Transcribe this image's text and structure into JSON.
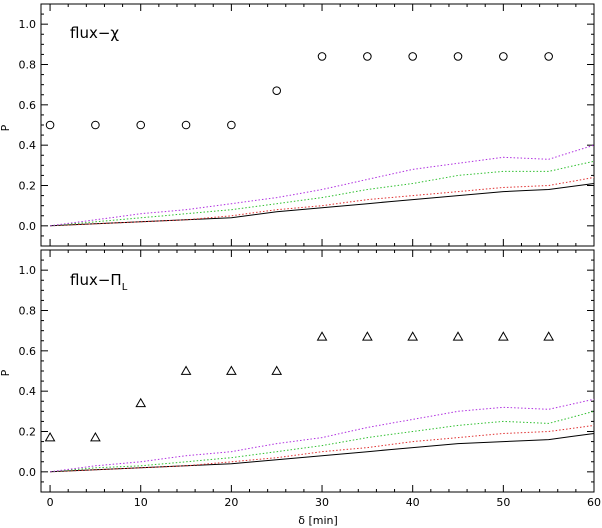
{
  "chart_data": [
    {
      "type": "scatter",
      "title": "flux−χ",
      "ylabel": "P",
      "xlabel": "",
      "xlim": [
        -1,
        60
      ],
      "ylim": [
        -0.1,
        1.1
      ],
      "grid": false,
      "x_ticks": [
        0,
        10,
        20,
        30,
        40,
        50,
        60
      ],
      "y_ticks": [
        0.0,
        0.2,
        0.4,
        0.6,
        0.8,
        1.0
      ],
      "y_tick_labels": [
        "0.0",
        "0.2",
        "0.4",
        "0.6",
        "0.8",
        "1.0"
      ],
      "points": {
        "marker": "circle",
        "x": [
          0,
          5,
          10,
          15,
          20,
          25,
          30,
          35,
          40,
          45,
          50,
          55
        ],
        "y": [
          0.5,
          0.5,
          0.5,
          0.5,
          0.5,
          0.67,
          0.84,
          0.84,
          0.84,
          0.84,
          0.84,
          0.84
        ]
      },
      "curves": [
        {
          "color": "#000000",
          "style": "solid",
          "x": [
            0,
            5,
            10,
            15,
            20,
            25,
            30,
            35,
            40,
            45,
            50,
            55,
            60
          ],
          "y": [
            0.0,
            0.01,
            0.02,
            0.03,
            0.04,
            0.07,
            0.09,
            0.11,
            0.13,
            0.15,
            0.17,
            0.18,
            0.21
          ]
        },
        {
          "color": "#e03030",
          "style": "dotted",
          "x": [
            0,
            5,
            10,
            15,
            20,
            25,
            30,
            35,
            40,
            45,
            50,
            55,
            60
          ],
          "y": [
            0.0,
            0.01,
            0.02,
            0.03,
            0.05,
            0.08,
            0.1,
            0.13,
            0.15,
            0.17,
            0.19,
            0.2,
            0.24
          ]
        },
        {
          "color": "#30c030",
          "style": "dotted",
          "x": [
            0,
            5,
            10,
            15,
            20,
            25,
            30,
            35,
            40,
            45,
            50,
            55,
            60
          ],
          "y": [
            0.0,
            0.02,
            0.04,
            0.06,
            0.08,
            0.11,
            0.14,
            0.18,
            0.21,
            0.25,
            0.27,
            0.27,
            0.32
          ]
        },
        {
          "color": "#b030e0",
          "style": "dotted",
          "x": [
            0,
            5,
            10,
            15,
            20,
            25,
            30,
            35,
            40,
            45,
            50,
            55,
            60
          ],
          "y": [
            0.0,
            0.03,
            0.06,
            0.08,
            0.11,
            0.14,
            0.18,
            0.23,
            0.28,
            0.31,
            0.34,
            0.33,
            0.4
          ]
        }
      ]
    },
    {
      "type": "scatter",
      "title_main": "flux−Π",
      "title_sub": "L",
      "ylabel": "P",
      "xlabel": "δ [min]",
      "xlim": [
        -1,
        60
      ],
      "ylim": [
        -0.1,
        1.1
      ],
      "grid": false,
      "x_ticks": [
        0,
        10,
        20,
        30,
        40,
        50,
        60
      ],
      "x_tick_labels": [
        "0",
        "10",
        "20",
        "30",
        "40",
        "50",
        "60"
      ],
      "y_ticks": [
        0.0,
        0.2,
        0.4,
        0.6,
        0.8,
        1.0
      ],
      "y_tick_labels": [
        "0.0",
        "0.2",
        "0.4",
        "0.6",
        "0.8",
        "1.0"
      ],
      "points": {
        "marker": "triangle",
        "x": [
          0,
          5,
          10,
          15,
          20,
          25,
          30,
          35,
          40,
          45,
          50,
          55
        ],
        "y": [
          0.17,
          0.17,
          0.34,
          0.5,
          0.5,
          0.5,
          0.67,
          0.67,
          0.67,
          0.67,
          0.67,
          0.67
        ]
      },
      "curves": [
        {
          "color": "#000000",
          "style": "solid",
          "x": [
            0,
            5,
            10,
            15,
            20,
            25,
            30,
            35,
            40,
            45,
            50,
            55,
            60
          ],
          "y": [
            0.0,
            0.01,
            0.02,
            0.03,
            0.04,
            0.06,
            0.08,
            0.1,
            0.12,
            0.14,
            0.15,
            0.16,
            0.19
          ]
        },
        {
          "color": "#e03030",
          "style": "dotted",
          "x": [
            0,
            5,
            10,
            15,
            20,
            25,
            30,
            35,
            40,
            45,
            50,
            55,
            60
          ],
          "y": [
            0.0,
            0.01,
            0.02,
            0.03,
            0.05,
            0.07,
            0.1,
            0.12,
            0.15,
            0.17,
            0.19,
            0.2,
            0.23
          ]
        },
        {
          "color": "#30c030",
          "style": "dotted",
          "x": [
            0,
            5,
            10,
            15,
            20,
            25,
            30,
            35,
            40,
            45,
            50,
            55,
            60
          ],
          "y": [
            0.0,
            0.02,
            0.03,
            0.05,
            0.07,
            0.1,
            0.13,
            0.17,
            0.2,
            0.23,
            0.25,
            0.24,
            0.3
          ]
        },
        {
          "color": "#b030e0",
          "style": "dotted",
          "x": [
            0,
            5,
            10,
            15,
            20,
            25,
            30,
            35,
            40,
            45,
            50,
            55,
            60
          ],
          "y": [
            0.0,
            0.03,
            0.05,
            0.08,
            0.1,
            0.14,
            0.17,
            0.22,
            0.26,
            0.3,
            0.32,
            0.31,
            0.36
          ]
        }
      ]
    }
  ]
}
